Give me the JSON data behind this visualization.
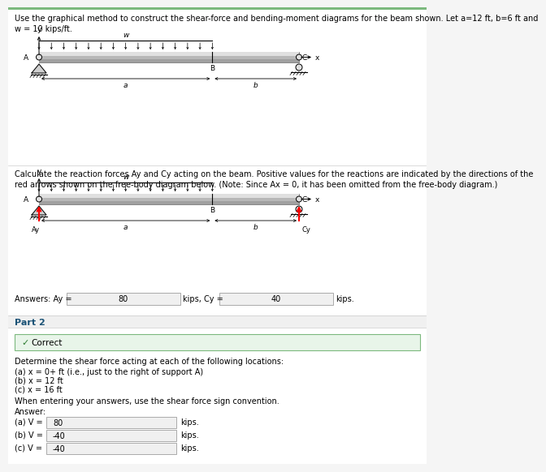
{
  "title_text": "Use the graphical method to construct the shear-force and bending-moment diagrams for the beam shown. Let a=12 ft, b=6 ft and\nw = 10 kips/ft.",
  "background_color": "#f5f5f5",
  "white_bg": "#ffffff",
  "green_bg": "#e8f5e9",
  "green_border": "#7cb97e",
  "part2_color": "#1a5276",
  "reaction_text": "Calculate the reaction forces Ay and Cy acting on the beam. Positive values for the reactions are indicated by the directions of the\nred arrows shown on the free-body diagram below. (Note: Since Ax = 0, it has been omitted from the free-body diagram.)",
  "ay_value": "80",
  "cy_value": "40",
  "part2_text": "Part 2",
  "correct_text": "Correct",
  "determine_text": "Determine the shear force acting at each of the following locations:",
  "loc_a": "(a) x = 0+ ft (i.e., just to the right of support A)",
  "loc_b": "(b) x = 12 ft",
  "loc_c": "(c) x = 16 ft",
  "convention_text": "When entering your answers, use the shear force sign convention.",
  "answer_label": "Answer:",
  "va_value": "80",
  "vb_value": "-40",
  "vc_value": "-40"
}
